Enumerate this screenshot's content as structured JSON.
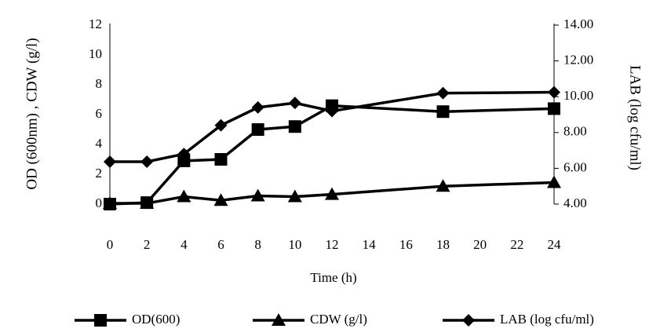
{
  "chart_data": {
    "type": "line",
    "x_label": "Time (h)",
    "y_label": "OD (600nm) , CDW (g/l)",
    "y2_label": "LAB (log cfu/ml)",
    "x": [
      0,
      2,
      4,
      6,
      8,
      10,
      12,
      18,
      24
    ],
    "xlim": [
      0,
      24
    ],
    "xticks": [
      0,
      2,
      4,
      6,
      8,
      10,
      12,
      14,
      16,
      18,
      20,
      22,
      24
    ],
    "ylim": [
      0,
      12
    ],
    "yticks": [
      0,
      2,
      4,
      6,
      8,
      10,
      12
    ],
    "y2lim": [
      4,
      14
    ],
    "y2ticks": [
      {
        "value": 4,
        "label": "4.00"
      },
      {
        "value": 6,
        "label": "6.00"
      },
      {
        "value": 8,
        "label": "8.00"
      },
      {
        "value": 10,
        "label": "10.00"
      },
      {
        "value": 12,
        "label": "12.00"
      },
      {
        "value": 14,
        "label": "14.00"
      }
    ],
    "legend": "bottom",
    "series": [
      {
        "name": "OD(600)",
        "color": "#000000",
        "marker": "square",
        "values": [
          0,
          0.1,
          2.9,
          3.0,
          5.0,
          5.2,
          6.6,
          6.2,
          6.4
        ]
      },
      {
        "name": "CDW (g/l)",
        "color": "#000000",
        "marker": "triangle",
        "values": [
          0.05,
          0.05,
          0.5,
          0.25,
          0.55,
          0.5,
          0.65,
          1.2,
          1.45
        ]
      },
      {
        "name": "LAB (log cfu/ml)",
        "color": "#000000",
        "marker": "diamond",
        "axis": "y2",
        "values": [
          6.37,
          6.37,
          6.8,
          8.4,
          9.4,
          9.65,
          9.2,
          10.2,
          10.25
        ]
      }
    ]
  }
}
